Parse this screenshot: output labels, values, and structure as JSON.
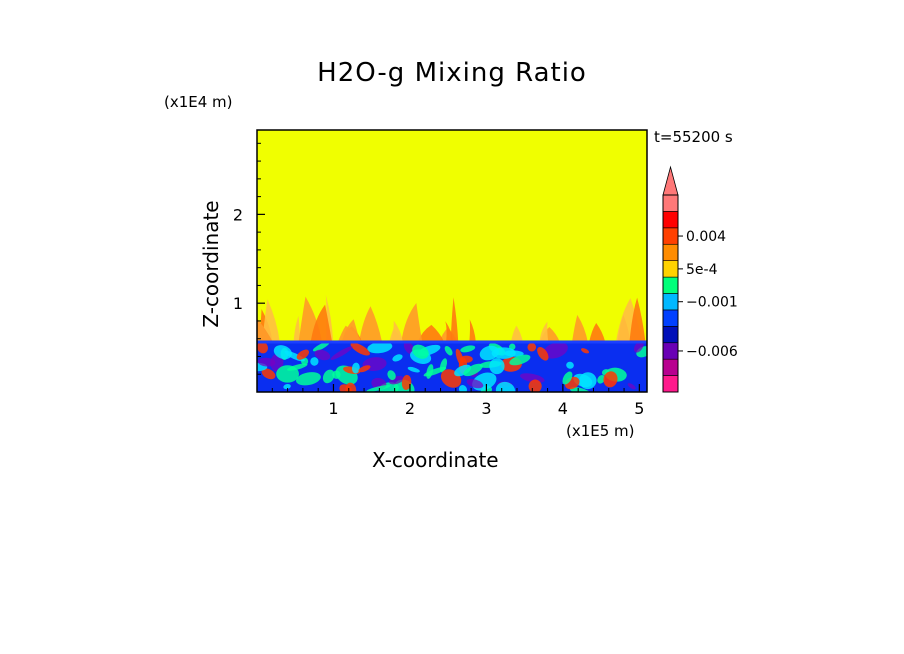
{
  "chart_data": {
    "type": "heatmap",
    "title": "H2O-g Mixing Ratio",
    "xlabel": "X-coordinate",
    "ylabel": "Z-coordinate",
    "x_unit": "(x1E5 m)",
    "y_unit": "(x1E4 m)",
    "timestamp": "t=55200 s",
    "x_ticks": [
      "1",
      "2",
      "3",
      "4",
      "5"
    ],
    "y_ticks": [
      "1",
      "2"
    ],
    "xlim": [
      0,
      5.1
    ],
    "ylim": [
      0,
      2.95
    ],
    "colorbar": {
      "labels": [
        "0.004",
        "5e-4",
        "−0.001",
        "−0.006"
      ],
      "bands": [
        "#ff1a8c",
        "#b8008f",
        "#6a00b5",
        "#000fb8",
        "#0040ff",
        "#00b8ff",
        "#00ff7a",
        "#ffd200",
        "#ff8c00",
        "#ff4000",
        "#ff0000",
        "#ff7878"
      ],
      "extend": "max"
    },
    "field": {
      "background_color": "#f0ff00",
      "boundary_layer_top": 0.58,
      "boundary_layer_color": "#0a2ef0",
      "plume_colors": [
        "#ff9a28",
        "#ff7a10",
        "#ffc040"
      ],
      "mixed_colors": [
        "#00e5ff",
        "#00ff9a",
        "#ff3a00",
        "#7a00c0"
      ]
    }
  }
}
